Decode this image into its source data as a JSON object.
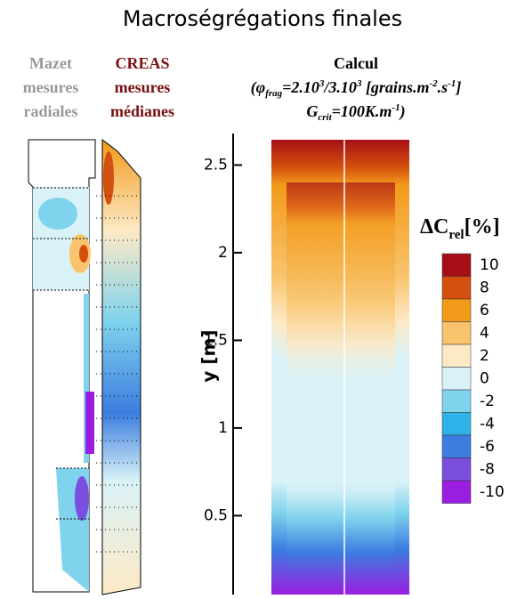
{
  "title": "Macroségrégations finales",
  "mazet": [
    "Mazet",
    "mesures",
    "radiales"
  ],
  "creas": [
    "CREAS",
    "mesures",
    "médianes"
  ],
  "calcul": {
    "title": "Calcul",
    "line2": [
      "(φ",
      "frag",
      "=2.10",
      "3",
      "/3.10",
      "3",
      " [grains.m",
      "-2",
      ".s",
      "-1",
      "]"
    ],
    "line3": [
      "G",
      "crit",
      "=100K.m",
      "-1",
      ")"
    ]
  },
  "y_axis": {
    "label": "y [m]",
    "lim": [
      0.05,
      2.68
    ],
    "ticks": [
      0.5,
      1,
      1.5,
      2,
      2.5
    ]
  },
  "colorbar": {
    "title": "ΔC",
    "sub": "rel",
    "unit": "[%]",
    "ticks": [
      10,
      8,
      6,
      4,
      2,
      0,
      -2,
      -4,
      -6,
      -8,
      -10
    ],
    "colors": [
      "#a50f15",
      "#d4500f",
      "#f29a1a",
      "#f9c46d",
      "#fde9c6",
      "#d9f2f7",
      "#7fd3ec",
      "#2eb2e8",
      "#3c7de0",
      "#7a4fe0",
      "#9a1ee0"
    ]
  }
}
